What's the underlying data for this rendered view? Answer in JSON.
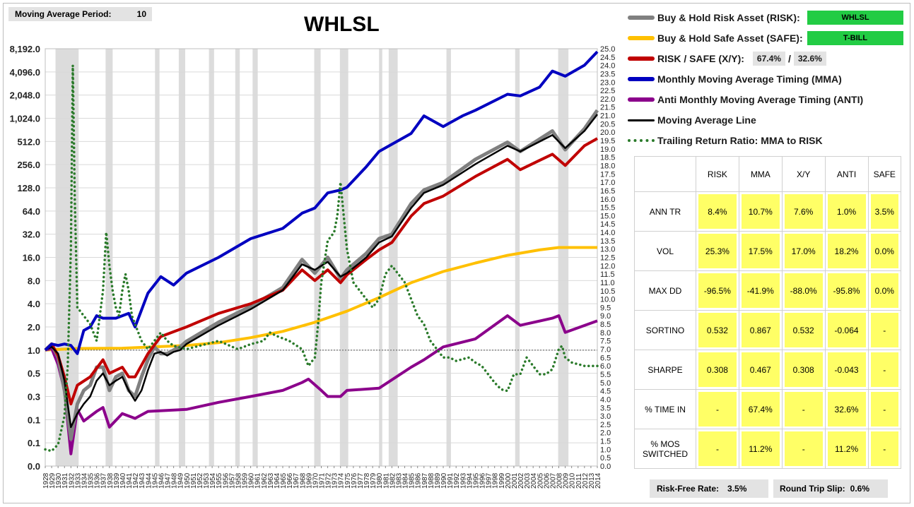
{
  "header": {
    "period_label": "Moving Average Period:",
    "period_value": "10",
    "title": "WHLSL"
  },
  "legend": {
    "risk": "Buy & Hold Risk Asset (RISK):",
    "risk_ticker": "WHLSL",
    "safe": "Buy & Hold Safe Asset (SAFE):",
    "safe_ticker": "T-BILL",
    "ratio": "RISK / SAFE (X/Y):",
    "ratio_x": "67.4%",
    "ratio_sep": "/",
    "ratio_y": "32.6%",
    "mma": "Monthly Moving Average Timing (MMA)",
    "anti": "Anti Monthly Moving Average Timing (ANTI)",
    "maline": "Moving Average Line",
    "trailing": "Trailing Return Ratio: MMA to RISK"
  },
  "colors": {
    "risk": "#808080",
    "safe": "#ffc000",
    "xy": "#c00000",
    "mma": "#0000c0",
    "anti": "#8b008b",
    "ma": "#000000",
    "trailing": "#2a7a2a",
    "highlight": "#ffff66",
    "ticker_bg": "#22cc44"
  },
  "stats": {
    "columns": [
      "",
      "RISK",
      "MMA",
      "X/Y",
      "ANTI",
      "SAFE"
    ],
    "rows": [
      {
        "label": "ANN TR",
        "values": [
          "8.4%",
          "10.7%",
          "7.6%",
          "1.0%",
          "3.5%"
        ]
      },
      {
        "label": "VOL",
        "values": [
          "25.3%",
          "17.5%",
          "17.0%",
          "18.2%",
          "0.0%"
        ]
      },
      {
        "label": "MAX DD",
        "values": [
          "-96.5%",
          "-41.9%",
          "-88.0%",
          "-95.8%",
          "0.0%"
        ]
      },
      {
        "label": "SORTINO",
        "values": [
          "0.532",
          "0.867",
          "0.532",
          "-0.064",
          "-"
        ]
      },
      {
        "label": "SHARPE",
        "values": [
          "0.308",
          "0.467",
          "0.308",
          "-0.043",
          "-"
        ]
      },
      {
        "label": "% TIME IN",
        "values": [
          "-",
          "67.4%",
          "-",
          "32.6%",
          "-"
        ]
      },
      {
        "label": "% MOS SWITCHED",
        "values": [
          "-",
          "11.2%",
          "-",
          "11.2%",
          "-"
        ]
      }
    ]
  },
  "footer": {
    "rf_label": "Risk-Free Rate:",
    "rf_value": "3.5%",
    "slip_label": "Round Trip Slip:",
    "slip_value": "0.6%"
  },
  "chart_data": {
    "type": "line",
    "left_axis": {
      "scale": "log2",
      "ticks": [
        "8,192.0",
        "4,096.0",
        "2,048.0",
        "1,024.0",
        "512.0",
        "256.0",
        "128.0",
        "64.0",
        "32.0",
        "16.0",
        "8.0",
        "4.0",
        "2.0",
        "1.0",
        "0.5",
        "0.3",
        "0.1",
        "0.1",
        "0.0"
      ]
    },
    "right_axis": {
      "range": [
        0,
        25
      ],
      "step": 0.5
    },
    "x_range": [
      1928,
      2014
    ],
    "x_ticks": [
      "1928",
      "1929",
      "1930",
      "1931",
      "1932",
      "1933",
      "1934",
      "1935",
      "1936",
      "1937",
      "1938",
      "1939",
      "1940",
      "1941",
      "1942",
      "1943",
      "1944",
      "1945",
      "1946",
      "1947",
      "1948",
      "1949",
      "1950",
      "1951",
      "1952",
      "1953",
      "1954",
      "1955",
      "1956",
      "1957",
      "1958",
      "1959",
      "1960",
      "1961",
      "1962",
      "1963",
      "1964",
      "1965",
      "1966",
      "1967",
      "1968",
      "1969",
      "1970",
      "1971",
      "1972",
      "1973",
      "1974",
      "1975",
      "1976",
      "1977",
      "1978",
      "1979",
      "1980",
      "1981",
      "1982",
      "1983",
      "1984",
      "1985",
      "1986",
      "1987",
      "1988",
      "1989",
      "1990",
      "1991",
      "1992",
      "1993",
      "1994",
      "1995",
      "1996",
      "1997",
      "1998",
      "1999",
      "2000",
      "2001",
      "2002",
      "2003",
      "2004",
      "2005",
      "2006",
      "2007",
      "2008",
      "2009",
      "2010",
      "2011",
      "2012",
      "2013",
      "2014"
    ],
    "recession_bands": [
      [
        1929.6,
        1933.2
      ],
      [
        1937.4,
        1938.5
      ],
      [
        1945.1,
        1945.8
      ],
      [
        1948.8,
        1949.8
      ],
      [
        1953.5,
        1954.3
      ],
      [
        1957.6,
        1958.3
      ],
      [
        1960.3,
        1961.1
      ],
      [
        1969.9,
        1970.9
      ],
      [
        1973.9,
        1975.2
      ],
      [
        1980.0,
        1980.5
      ],
      [
        1981.5,
        1982.9
      ],
      [
        1990.5,
        1991.2
      ],
      [
        2001.2,
        2001.9
      ],
      [
        2007.9,
        2009.5
      ]
    ],
    "series": [
      {
        "name": "Buy & Hold Risk Asset (RISK)",
        "key": "risk",
        "axis": "left",
        "x": [
          1928,
          1929,
          1930,
          1931,
          1932,
          1933,
          1934,
          1935,
          1936,
          1937,
          1938,
          1939,
          1940,
          1941,
          1942,
          1943,
          1944,
          1945,
          1946,
          1947,
          1948,
          1949,
          1950,
          1955,
          1960,
          1965,
          1968,
          1970,
          1972,
          1974,
          1975,
          1978,
          1980,
          1982,
          1985,
          1987,
          1990,
          1995,
          2000,
          2002,
          2007,
          2009,
          2012,
          2014
        ],
        "y": [
          1.0,
          1.2,
          0.8,
          0.3,
          0.07,
          0.2,
          0.3,
          0.35,
          0.6,
          0.6,
          0.3,
          0.45,
          0.5,
          0.3,
          0.25,
          0.45,
          0.75,
          1.1,
          0.9,
          0.9,
          1.0,
          1.1,
          1.3,
          2.3,
          3.7,
          6.5,
          15,
          10,
          16,
          8.5,
          11,
          18,
          28,
          32,
          80,
          120,
          150,
          300,
          500,
          380,
          700,
          400,
          750,
          1300
        ]
      },
      {
        "name": "Buy & Hold Safe Asset (SAFE)",
        "key": "safe",
        "axis": "left",
        "x": [
          1928,
          1933,
          1940,
          1950,
          1955,
          1960,
          1965,
          1970,
          1975,
          1980,
          1985,
          1990,
          1995,
          2000,
          2005,
          2008,
          2014
        ],
        "y": [
          1.0,
          1.05,
          1.06,
          1.15,
          1.25,
          1.45,
          1.75,
          2.3,
          3.2,
          4.8,
          7.5,
          10.5,
          13.5,
          17,
          20,
          21.5,
          21.5
        ]
      },
      {
        "name": "RISK / SAFE (X/Y)",
        "key": "xy",
        "axis": "left",
        "x": [
          1928,
          1929,
          1930,
          1931,
          1932,
          1933,
          1935,
          1937,
          1938,
          1940,
          1941,
          1942,
          1944,
          1946,
          1950,
          1955,
          1960,
          1965,
          1968,
          1970,
          1972,
          1974,
          1975,
          1978,
          1980,
          1982,
          1985,
          1987,
          1990,
          1995,
          2000,
          2002,
          2007,
          2009,
          2012,
          2014
        ],
        "y": [
          1.0,
          1.2,
          0.85,
          0.45,
          0.2,
          0.35,
          0.45,
          0.75,
          0.5,
          0.6,
          0.45,
          0.45,
          0.9,
          1.5,
          2.0,
          3.0,
          4.0,
          6.0,
          11,
          8,
          11,
          7.5,
          9.5,
          15,
          20,
          25,
          55,
          80,
          100,
          180,
          300,
          220,
          350,
          250,
          450,
          560
        ]
      },
      {
        "name": "Monthly Moving Average Timing (MMA)",
        "key": "mma",
        "axis": "left",
        "x": [
          1928,
          1929,
          1930,
          1931,
          1932,
          1933,
          1934,
          1935,
          1936,
          1937,
          1939,
          1941,
          1942,
          1944,
          1946,
          1948,
          1950,
          1955,
          1960,
          1965,
          1968,
          1970,
          1972,
          1974,
          1975,
          1978,
          1980,
          1985,
          1987,
          1990,
          1993,
          1995,
          2000,
          2002,
          2005,
          2007,
          2009,
          2012,
          2014
        ],
        "y": [
          1.0,
          1.2,
          1.15,
          1.2,
          1.15,
          0.9,
          1.8,
          2.0,
          2.8,
          2.6,
          2.6,
          3.0,
          2.0,
          5.5,
          9,
          7,
          10,
          16,
          28,
          38,
          60,
          70,
          110,
          120,
          130,
          240,
          380,
          650,
          1100,
          800,
          1100,
          1300,
          2100,
          2000,
          2600,
          4200,
          3600,
          5000,
          7500
        ]
      },
      {
        "name": "Anti Monthly Moving Average Timing (ANTI)",
        "key": "anti",
        "axis": "left",
        "x": [
          1928,
          1929,
          1930,
          1931,
          1932,
          1933,
          1934,
          1936,
          1937,
          1938,
          1940,
          1942,
          1944,
          1950,
          1955,
          1960,
          1965,
          1968,
          1969,
          1971,
          1972,
          1974,
          1975,
          1980,
          1985,
          1987,
          1990,
          1995,
          2000,
          2002,
          2007,
          2008,
          2009,
          2014
        ],
        "y": [
          1.0,
          1.05,
          0.65,
          0.3,
          0.045,
          0.17,
          0.12,
          0.16,
          0.18,
          0.1,
          0.15,
          0.13,
          0.16,
          0.17,
          0.21,
          0.25,
          0.3,
          0.38,
          0.42,
          0.3,
          0.25,
          0.25,
          0.3,
          0.32,
          0.6,
          0.75,
          1.1,
          1.4,
          2.8,
          2.1,
          2.6,
          2.8,
          1.7,
          2.4
        ]
      },
      {
        "name": "Moving Average Line",
        "key": "ma",
        "axis": "left",
        "x": [
          1928,
          1929,
          1930,
          1931,
          1932,
          1933,
          1934,
          1935,
          1936,
          1937,
          1938,
          1939,
          1940,
          1941,
          1942,
          1943,
          1944,
          1945,
          1946,
          1947,
          1948,
          1949,
          1950,
          1955,
          1960,
          1965,
          1968,
          1970,
          1972,
          1974,
          1975,
          1978,
          1980,
          1982,
          1985,
          1987,
          1990,
          1995,
          2000,
          2002,
          2007,
          2009,
          2012,
          2014
        ],
        "y": [
          1.0,
          1.1,
          0.9,
          0.4,
          0.1,
          0.15,
          0.2,
          0.25,
          0.4,
          0.5,
          0.35,
          0.4,
          0.45,
          0.3,
          0.22,
          0.3,
          0.55,
          0.9,
          0.95,
          0.85,
          0.95,
          1.0,
          1.2,
          2.1,
          3.4,
          6.0,
          13,
          11,
          14,
          9,
          10,
          16,
          25,
          30,
          70,
          110,
          140,
          260,
          450,
          380,
          620,
          420,
          700,
          1150
        ]
      },
      {
        "name": "Trailing Return Ratio: MMA to RISK",
        "key": "trailing",
        "axis": "right",
        "x": [
          1928,
          1929,
          1930,
          1931,
          1931.5,
          1932,
          1932.3,
          1932.6,
          1933,
          1934,
          1935,
          1936,
          1937,
          1937.5,
          1938,
          1938.5,
          1939,
          1939.5,
          1940,
          1940.5,
          1941,
          1941.5,
          1942,
          1943,
          1944,
          1945,
          1946,
          1947,
          1948,
          1950,
          1952,
          1955,
          1958,
          1960,
          1962,
          1963,
          1964,
          1966,
          1968,
          1968.5,
          1969,
          1970,
          1970.5,
          1971,
          1972,
          1973,
          1973.5,
          1974,
          1975,
          1976,
          1977,
          1978,
          1979,
          1980,
          1981,
          1982,
          1983,
          1984,
          1985,
          1986,
          1987,
          1988,
          1989,
          1990,
          1991,
          1992,
          1993,
          1994,
          1995,
          1996,
          1997,
          1998,
          1999,
          2000,
          2001,
          2002,
          2003,
          2004,
          2005,
          2006,
          2007,
          2008,
          2008.5,
          2009,
          2010,
          2011,
          2012,
          2014
        ],
        "y": [
          1.0,
          0.9,
          1.3,
          3.0,
          6.0,
          13.0,
          24.0,
          16.0,
          9.5,
          9.0,
          8.5,
          7.5,
          10.5,
          14.0,
          12.0,
          10.5,
          9.5,
          9.0,
          10.5,
          11.5,
          10.5,
          9.0,
          8.5,
          7.5,
          7.0,
          7.5,
          8.0,
          7.5,
          7.2,
          7.0,
          7.2,
          7.5,
          7.0,
          7.3,
          7.5,
          8.0,
          7.8,
          7.5,
          7.0,
          6.5,
          6.0,
          6.5,
          8.5,
          11.0,
          13.5,
          14.0,
          15.0,
          17.0,
          13.0,
          11.0,
          10.5,
          10.0,
          9.5,
          10.0,
          11.5,
          12.0,
          11.5,
          11.0,
          10.0,
          9.0,
          8.5,
          7.5,
          7.0,
          6.5,
          6.5,
          6.3,
          6.4,
          6.5,
          6.2,
          6.0,
          5.5,
          5.0,
          4.6,
          4.5,
          5.5,
          5.5,
          6.5,
          6.0,
          5.5,
          5.5,
          5.8,
          7.0,
          7.2,
          6.5,
          6.2,
          6.1,
          6.0,
          6.0
        ]
      }
    ]
  }
}
